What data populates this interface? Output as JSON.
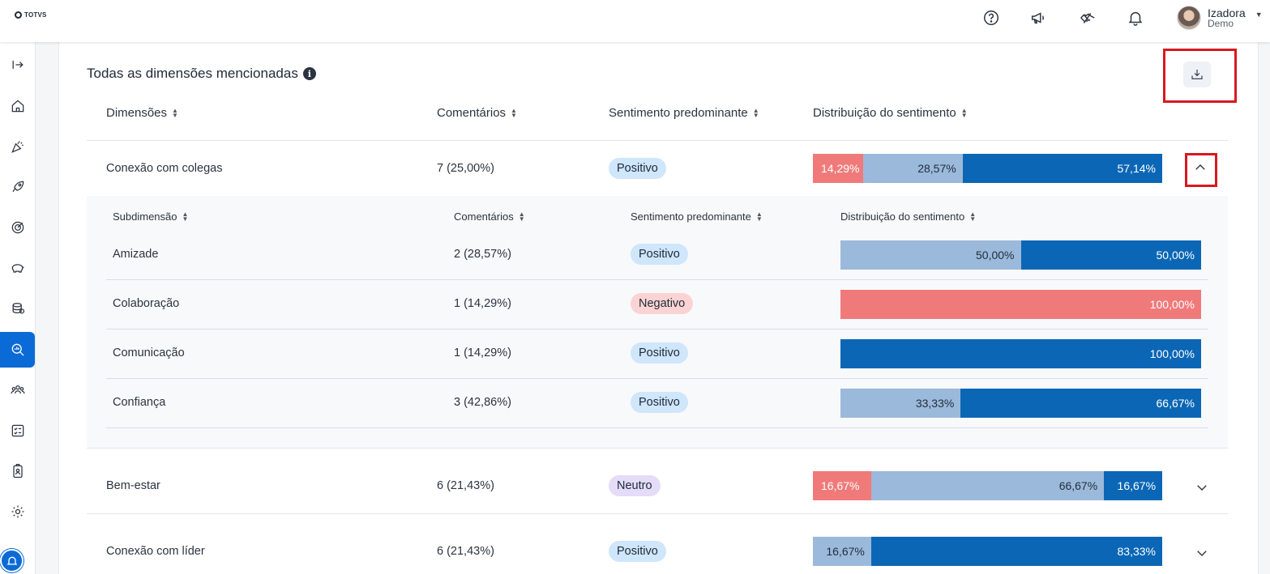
{
  "brand": {
    "logo_text": "TOTVS"
  },
  "user": {
    "name": "Izadora",
    "role": "Demo"
  },
  "topbar_icons": [
    "help-icon",
    "megaphone-icon",
    "handshake-icon",
    "bell-icon"
  ],
  "sidebar_icons": [
    "expand-icon",
    "home-icon",
    "party-icon",
    "rocket-icon",
    "target-icon",
    "piggy-bank-icon",
    "coins-icon",
    "analytics-search-icon",
    "people-icon",
    "checklist-icon",
    "badge-icon",
    "gear-icon"
  ],
  "section": {
    "title": "Todas as dimensões mencionadas",
    "columns": [
      "Dimensões",
      "Comentários",
      "Sentimento predominante",
      "Distribuição do sentimento"
    ]
  },
  "subtable": {
    "columns": [
      "Subdimensão",
      "Comentários",
      "Sentimento predominante",
      "Distribuição do sentimento"
    ],
    "rows": [
      {
        "name": "Amizade",
        "comments": "2 (28,57%)",
        "sentiment": "Positivo",
        "neg": 0,
        "neu": 50,
        "pos": 50,
        "neg_label": "",
        "neu_label": "50,00%",
        "pos_label": "50,00%"
      },
      {
        "name": "Colaboração",
        "comments": "1 (14,29%)",
        "sentiment": "Negativo",
        "neg": 100,
        "neu": 0,
        "pos": 0,
        "neg_label": "100,00%",
        "neu_label": "",
        "pos_label": ""
      },
      {
        "name": "Comunicação",
        "comments": "1 (14,29%)",
        "sentiment": "Positivo",
        "neg": 0,
        "neu": 0,
        "pos": 100,
        "neg_label": "",
        "neu_label": "",
        "pos_label": "100,00%"
      },
      {
        "name": "Confiança",
        "comments": "3 (42,86%)",
        "sentiment": "Positivo",
        "neg": 0,
        "neu": 33.33,
        "pos": 66.67,
        "neg_label": "",
        "neu_label": "33,33%",
        "pos_label": "66,67%"
      }
    ]
  },
  "rows": [
    {
      "name": "Conexão com colegas",
      "comments": "7 (25,00%)",
      "sentiment": "Positivo",
      "expanded": true,
      "neg": 14.29,
      "neu": 28.57,
      "pos": 57.14,
      "neg_label": "14,29%",
      "neu_label": "28,57%",
      "pos_label": "57,14%"
    },
    {
      "name": "Bem-estar",
      "comments": "6 (21,43%)",
      "sentiment": "Neutro",
      "expanded": false,
      "neg": 16.67,
      "neu": 66.67,
      "pos": 16.67,
      "neg_label": "16,67%",
      "neu_label": "66,67%",
      "pos_label": "16,67%"
    },
    {
      "name": "Conexão com líder",
      "comments": "6 (21,43%)",
      "sentiment": "Positivo",
      "expanded": false,
      "neg": 0,
      "neu": 16.67,
      "pos": 83.33,
      "neg_label": "",
      "neu_label": "16,67%",
      "pos_label": "83,33%"
    }
  ],
  "colors": {
    "negative": "#f07a7a",
    "neutral": "#9bb9da",
    "positive": "#0b67b5",
    "accent": "#0b6bd6",
    "highlight": "#d71920"
  }
}
